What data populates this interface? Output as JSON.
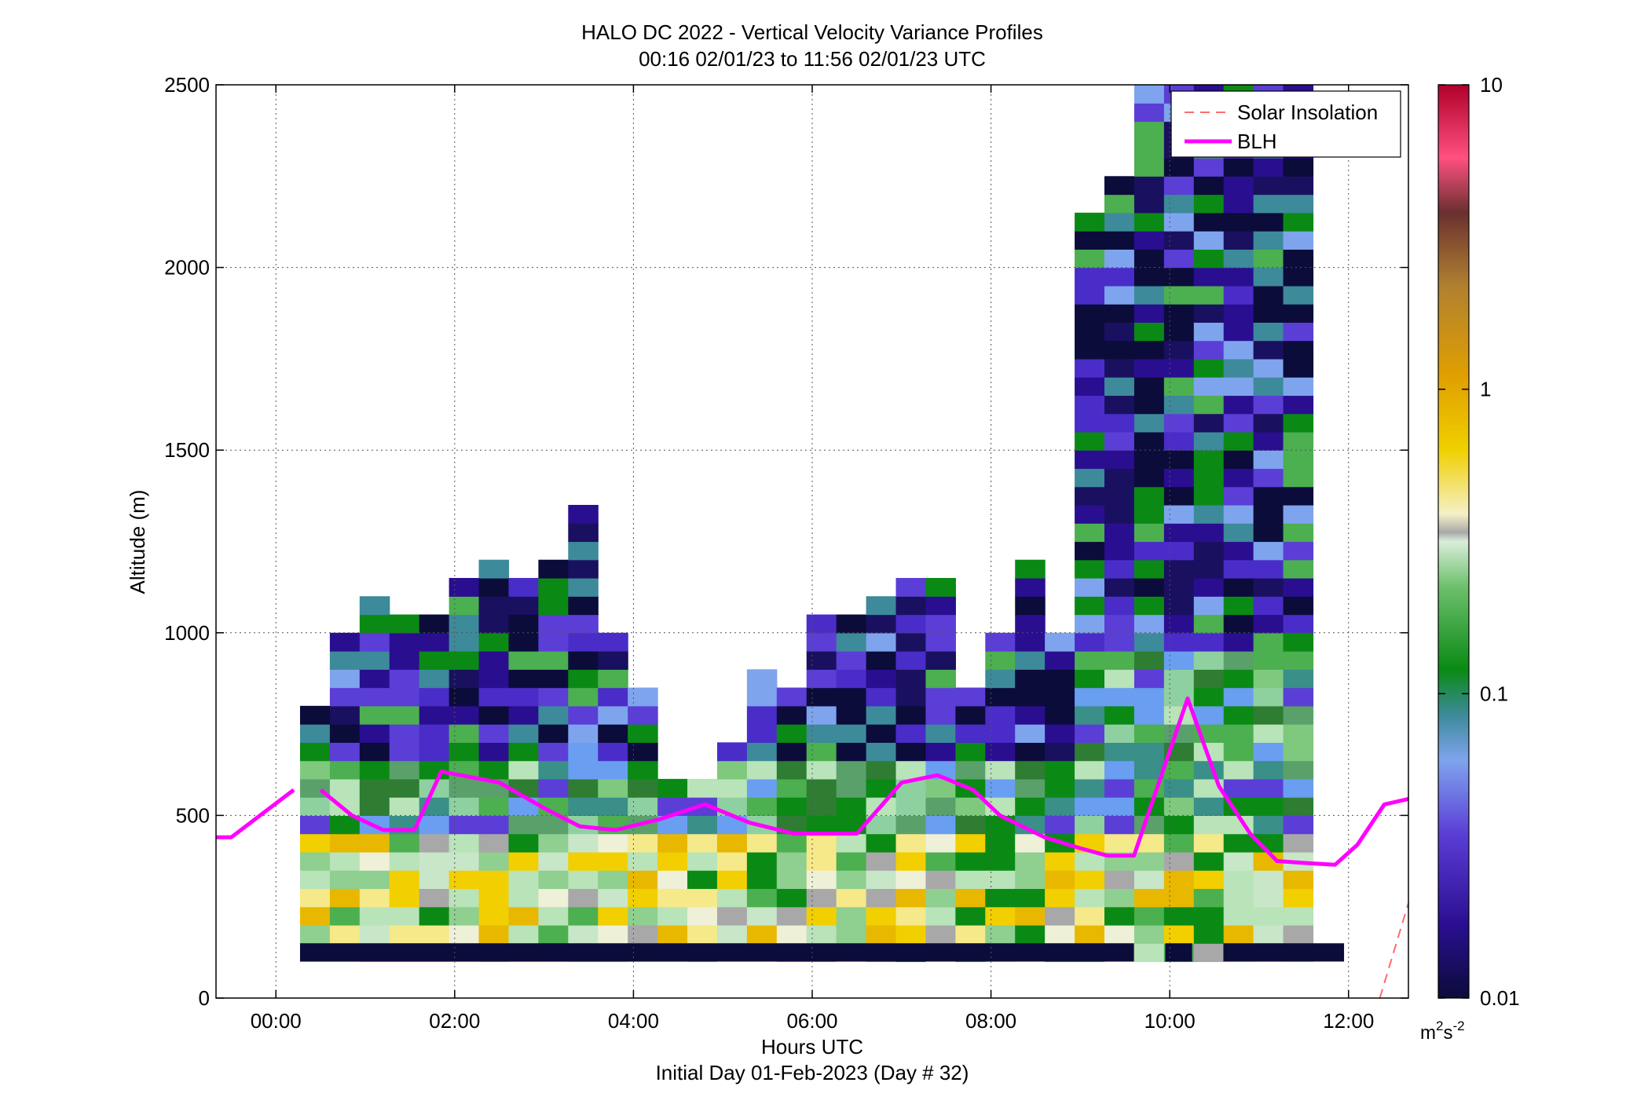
{
  "chart_data": {
    "type": "heatmap",
    "title": "HALO DC 2022 - Vertical Velocity Variance Profiles",
    "subtitle": "00:16 02/01/23 to 11:56 02/01/23  UTC",
    "xlabel": "Hours UTC",
    "xlabel2": "Initial Day 01-Feb-2023 (Day # 32)",
    "ylabel": "Altitude (m)",
    "xlim": [
      -0.67,
      12.67
    ],
    "ylim": [
      0,
      2500
    ],
    "x_ticks": [
      0,
      2,
      4,
      6,
      8,
      10,
      12
    ],
    "x_tick_labels": [
      "00:00",
      "02:00",
      "04:00",
      "06:00",
      "08:00",
      "10:00",
      "12:00"
    ],
    "y_ticks": [
      0,
      500,
      1000,
      1500,
      2000,
      2500
    ],
    "y_tick_labels": [
      "0",
      "500",
      "1000",
      "1500",
      "2000",
      "2500"
    ],
    "grid": true,
    "colorbar": {
      "scale": "log",
      "range": [
        0.01,
        10
      ],
      "ticks": [
        0.01,
        0.1,
        1,
        10
      ],
      "tick_labels": [
        "0.01",
        "0.1",
        "1",
        "10"
      ],
      "units_base": "m",
      "units_sup1": "2",
      "units_mid": "s",
      "units_sup2": "-2"
    },
    "legend": {
      "placement": "top-right",
      "entries": [
        {
          "label": "Solar Insolation",
          "color": "#ff6b6b",
          "style": "dashed"
        },
        {
          "label": "BLH",
          "color": "#ff00ff",
          "style": "solid"
        }
      ]
    },
    "heatmap": {
      "x_start": 0.27,
      "x_step": 0.3333,
      "y_start": 100,
      "y_step": 50,
      "columns": [
        {
          "top": 800
        },
        {
          "top": 1000
        },
        {
          "top": 1100
        },
        {
          "top": 1050
        },
        {
          "top": 1050
        },
        {
          "top": 1150
        },
        {
          "top": 1200
        },
        {
          "top": 1150
        },
        {
          "top": 1200
        },
        {
          "top": 1350
        },
        {
          "top": 1000
        },
        {
          "top": 850
        },
        {
          "top": 600
        },
        {
          "top": 600
        },
        {
          "top": 700
        },
        {
          "top": 900
        },
        {
          "top": 850
        },
        {
          "top": 1050
        },
        {
          "top": 1050
        },
        {
          "top": 1100
        },
        {
          "top": 1150
        },
        {
          "top": 1150
        },
        {
          "top": 850
        },
        {
          "top": 1000
        },
        {
          "top": 1200
        },
        {
          "top": 1000
        },
        {
          "top": 2150
        },
        {
          "top": 2250
        },
        {
          "top": 2500
        },
        {
          "top": 2500
        },
        {
          "top": 2500
        },
        {
          "top": 2500
        },
        {
          "top": 2500
        },
        {
          "top": 2500
        }
      ]
    },
    "blh": {
      "name": "BLH",
      "segments": [
        {
          "x": [
            -0.67,
            -0.5,
            0.2
          ],
          "y": [
            440,
            440,
            570
          ]
        },
        {
          "x": [
            0.5,
            0.85,
            1.2,
            1.55,
            1.85,
            2.5,
            3.0,
            3.4,
            3.8,
            4.3,
            4.8,
            5.3,
            5.8,
            6.2,
            6.5,
            7.0,
            7.4,
            7.8,
            8.1,
            8.6,
            9.0,
            9.3,
            9.6,
            10.2,
            10.55,
            10.9,
            11.2,
            11.5,
            11.85,
            12.1,
            12.4,
            12.67
          ],
          "y": [
            570,
            500,
            460,
            460,
            620,
            590,
            520,
            470,
            460,
            490,
            530,
            480,
            450,
            450,
            450,
            590,
            610,
            570,
            500,
            440,
            410,
            390,
            390,
            820,
            580,
            450,
            375,
            370,
            365,
            420,
            530,
            545
          ]
        }
      ]
    },
    "solar_insolation": {
      "name": "Solar Insolation",
      "x": [
        12.35,
        12.67
      ],
      "y": [
        0,
        260
      ]
    }
  }
}
